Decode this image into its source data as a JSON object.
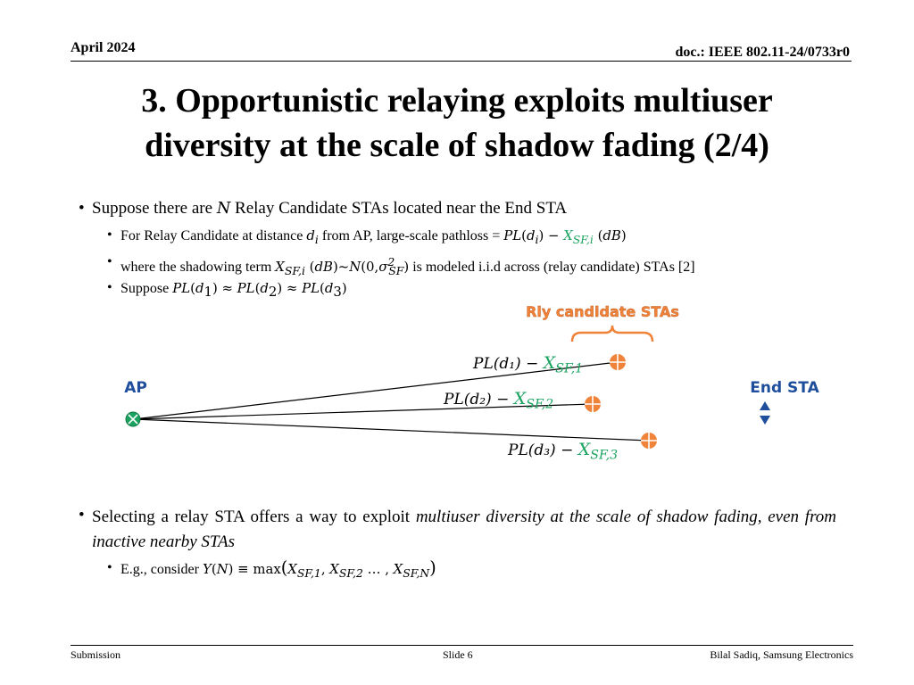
{
  "header": {
    "date": "April 2024",
    "doc": "doc.: IEEE 802.11-24/0733r0"
  },
  "title": {
    "line1": "3. Opportunistic relaying exploits multiuser",
    "line2": "diversity at the scale of shadow fading (2/4)"
  },
  "bullets": {
    "b1_pre": "Suppose there are ",
    "b1_var": "N",
    "b1_post": " Relay Candidate STAs located near the End STA",
    "b2_pre": "For Relay Candidate at distance ",
    "b2_mid": " from AP, large-scale pathloss = ",
    "b3_pre": "where the shadowing term ",
    "b3_post": " is modeled i.i.d across (relay candidate) STAs [2]",
    "b4_pre": "Suppose "
  },
  "diagram": {
    "group_label": "Rly candidate STAs",
    "ap_label": "AP",
    "end_label": "End STA",
    "pl1": "PL(d₁) −",
    "x1": "X",
    "x1_sub": "SF,1",
    "pl2": "PL(d₂) −",
    "x2": "X",
    "x2_sub": "SF,2",
    "pl3": "PL(d₃) −",
    "x3": "X",
    "x3_sub": "SF,3"
  },
  "para2": {
    "text_normal": "Selecting a relay STA offers a way to exploit ",
    "text_italic": "multiuser diversity at the scale of shadow fading, even from inactive nearby STAs",
    "eg_pre": "E.g., consider "
  },
  "footer": {
    "left": "Submission",
    "center": "Slide 6",
    "right": "Bilal Sadiq, Samsung Electronics"
  },
  "colors": {
    "green": "#1aa35f",
    "orange": "#f0833a",
    "blue": "#1f4e9c"
  }
}
